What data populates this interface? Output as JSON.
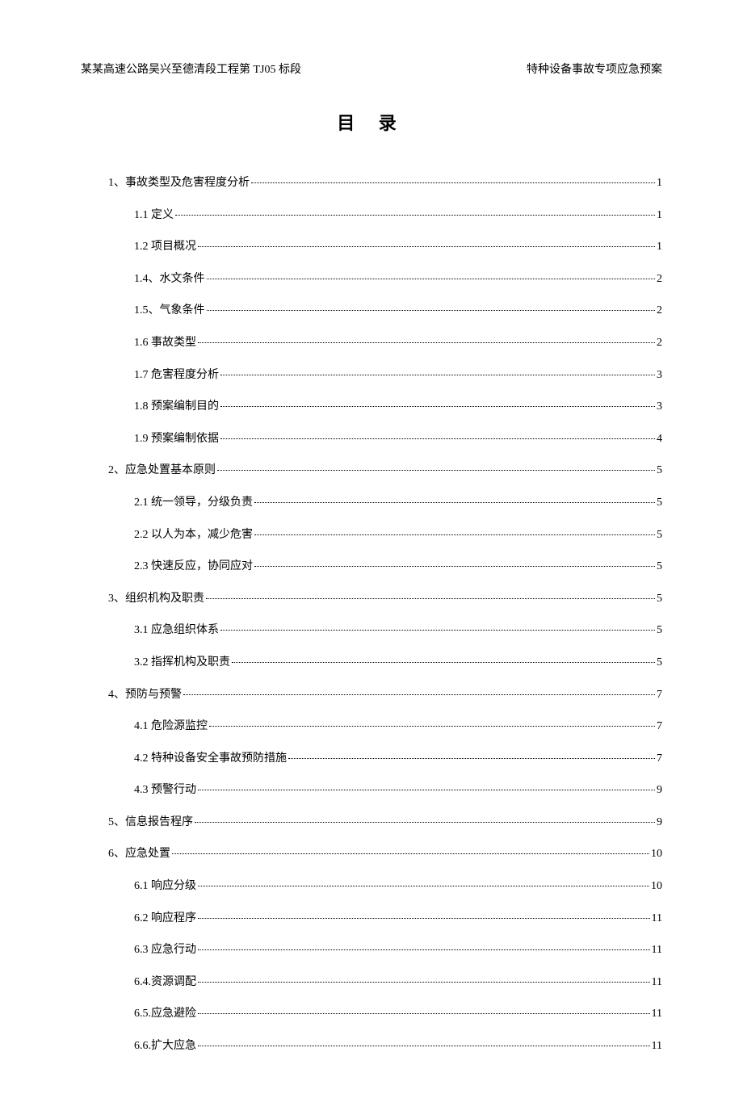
{
  "header": {
    "left": "某某高速公路吴兴至德清段工程第 TJ05 标段",
    "right": "特种设备事故专项应急预案"
  },
  "title": "目 录",
  "toc": [
    {
      "level": 1,
      "label": "1、事故类型及危害程度分析",
      "page": "1"
    },
    {
      "level": 2,
      "label": "1.1 定义",
      "page": "1"
    },
    {
      "level": 2,
      "label": "1.2  项目概况",
      "page": "1"
    },
    {
      "level": 2,
      "label": "1.4、水文条件",
      "page": "2"
    },
    {
      "level": 2,
      "label": "1.5、气象条件",
      "page": "2"
    },
    {
      "level": 2,
      "label": "1.6 事故类型",
      "page": "2"
    },
    {
      "level": 2,
      "label": "1.7 危害程度分析",
      "page": "3"
    },
    {
      "level": 2,
      "label": "1.8 预案编制目的",
      "page": "3"
    },
    {
      "level": 2,
      "label": "1.9 预案编制依据",
      "page": "4"
    },
    {
      "level": 1,
      "label": "2、应急处置基本原则",
      "page": "5"
    },
    {
      "level": 2,
      "label": "2.1  统一领导，分级负责",
      "page": "5"
    },
    {
      "level": 2,
      "label": "2.2  以人为本，减少危害",
      "page": "5"
    },
    {
      "level": 2,
      "label": "2.3  快速反应，协同应对",
      "page": "5"
    },
    {
      "level": 1,
      "label": "3、组织机构及职责",
      "page": "5"
    },
    {
      "level": 2,
      "label": "3.1  应急组织体系",
      "page": "5"
    },
    {
      "level": 2,
      "label": "3.2  指挥机构及职责",
      "page": "5"
    },
    {
      "level": 1,
      "label": "4、预防与预警",
      "page": "7"
    },
    {
      "level": 2,
      "label": "4.1 危险源监控",
      "page": "7"
    },
    {
      "level": 2,
      "label": "4.2 特种设备安全事故预防措施",
      "page": "7"
    },
    {
      "level": 2,
      "label": "4.3 预警行动",
      "page": "9"
    },
    {
      "level": 1,
      "label": "5、信息报告程序",
      "page": "9"
    },
    {
      "level": 1,
      "label": "6、应急处置",
      "page": "10"
    },
    {
      "level": 2,
      "label": "6.1 响应分级",
      "page": "10"
    },
    {
      "level": 2,
      "label": "6.2  响应程序",
      "page": "11"
    },
    {
      "level": 2,
      "label": "6.3 应急行动",
      "page": "11"
    },
    {
      "level": 2,
      "label": "6.4.资源调配",
      "page": "11"
    },
    {
      "level": 2,
      "label": "6.5.应急避险",
      "page": "11"
    },
    {
      "level": 2,
      "label": "6.6.扩大应急",
      "page": "11"
    }
  ]
}
